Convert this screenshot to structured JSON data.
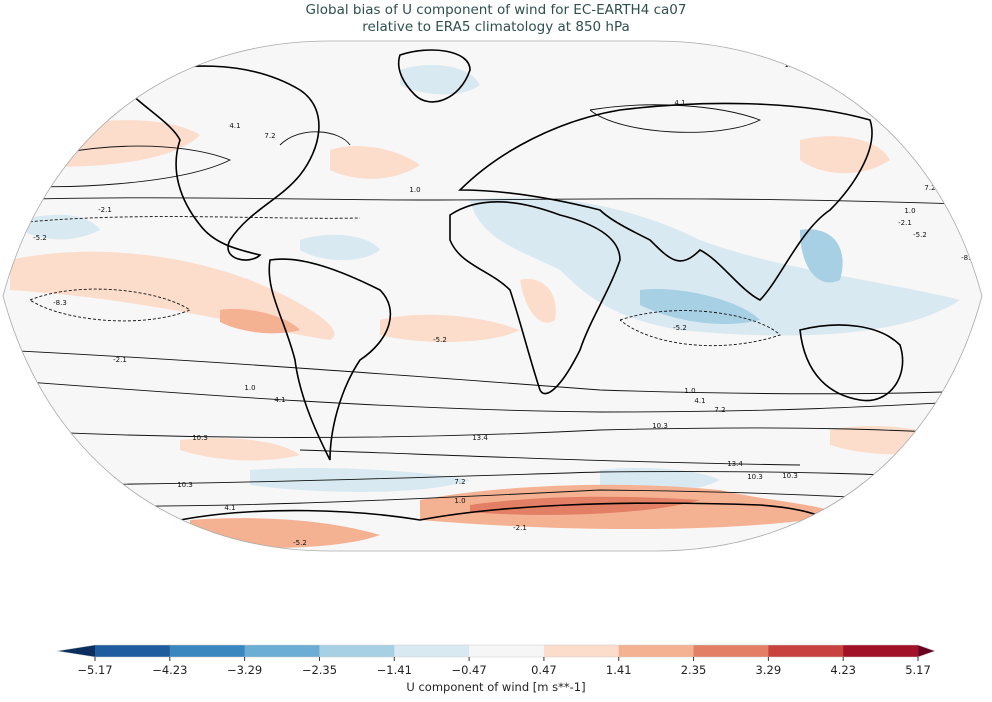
{
  "title": {
    "line1": "Global bias of U component of wind for EC-EARTH4 ca07",
    "line2": "relative to ERA5 climatology at 850 hPa"
  },
  "map": {
    "projection": "Robinson",
    "variable": "U component of wind bias",
    "contour_levels": [
      "-8.3",
      "-5.2",
      "-2.1",
      "1.0",
      "4.1",
      "7.2",
      "10.3",
      "13.4"
    ],
    "background_color": "#f7f7f7",
    "coastline_color": "#000000"
  },
  "colorbar": {
    "label": "U component of wind [m s**-1]",
    "ticks": [
      "−5.17",
      "−4.23",
      "−3.29",
      "−2.35",
      "−1.41",
      "−0.47",
      "0.47",
      "1.41",
      "2.35",
      "3.29",
      "4.23",
      "5.17"
    ],
    "under_color": "#0a2f5f",
    "colors": [
      "#1f5c9f",
      "#3a87bf",
      "#6badd5",
      "#a8d0e4",
      "#d9e9f2",
      "#f6f6f6",
      "#fcdccb",
      "#f5b293",
      "#e27f64",
      "#c8433f",
      "#a11228"
    ],
    "over_color": "#67001f",
    "extend": "both"
  }
}
